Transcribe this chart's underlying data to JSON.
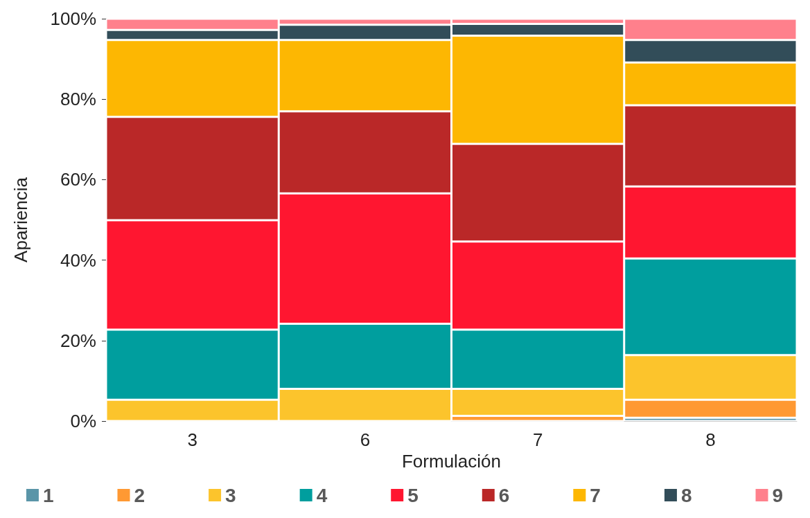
{
  "chart_data": {
    "type": "bar",
    "stacked": true,
    "xlabel": "Formulación",
    "ylabel": "Apariencia",
    "categories": [
      "3",
      "6",
      "7",
      "8"
    ],
    "ylim": [
      0,
      100
    ],
    "yticks": [
      {
        "value": 0,
        "label": "0%"
      },
      {
        "value": 20,
        "label": "20%"
      },
      {
        "value": 40,
        "label": "40%"
      },
      {
        "value": 60,
        "label": "60%"
      },
      {
        "value": 80,
        "label": "80%"
      },
      {
        "value": 100,
        "label": "100%"
      }
    ],
    "grid": false,
    "legend": "bottom",
    "series": [
      {
        "name": "1",
        "color": "#5a95a8",
        "values": [
          0,
          0,
          0,
          0.8
        ]
      },
      {
        "name": "2",
        "color": "#ff9933",
        "values": [
          0,
          0,
          1.3,
          4.5
        ]
      },
      {
        "name": "3",
        "color": "#fcc42c",
        "values": [
          5.3,
          8,
          6.7,
          11.1
        ]
      },
      {
        "name": "4",
        "color": "#009e9e",
        "values": [
          17.4,
          16.2,
          14.7,
          24
        ]
      },
      {
        "name": "5",
        "color": "#ff1630",
        "values": [
          27.2,
          32.4,
          21.9,
          17.9
        ]
      },
      {
        "name": "6",
        "color": "#ba2828",
        "values": [
          25.7,
          20.4,
          24.3,
          20.2
        ]
      },
      {
        "name": "7",
        "color": "#fdb702",
        "values": [
          19.1,
          17.7,
          26.9,
          10.6
        ]
      },
      {
        "name": "8",
        "color": "#324d59",
        "values": [
          2.5,
          3.8,
          2.9,
          5.6
        ]
      },
      {
        "name": "9",
        "color": "#ff808c",
        "values": [
          2.8,
          1.5,
          1.3,
          5.3
        ]
      }
    ]
  }
}
